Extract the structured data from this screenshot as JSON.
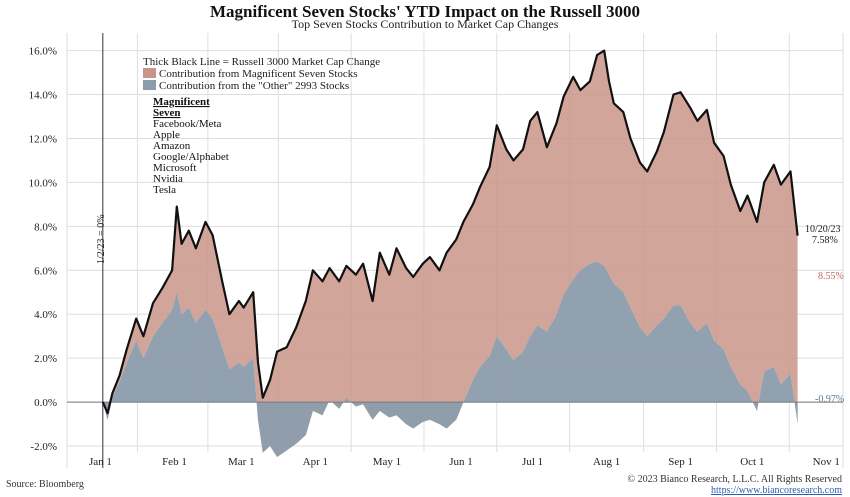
{
  "header": {
    "title": "Magnificent Seven Stocks' YTD Impact on the Russell 3000",
    "subtitle": "Top Seven Stocks Contribution to Market Cap Changes"
  },
  "legend": {
    "line_label": "Thick Black Line = Russell 3000 Market Cap Change",
    "mag7_label": "Contribution from Magnificent Seven Stocks",
    "other_label": "Contribution from the \"Other\" 2993 Stocks",
    "placement": "top-left"
  },
  "mag7_box": {
    "heading_line1": "Magnificent",
    "heading_line2": "Seven",
    "items": [
      "Facebook/Meta",
      "Apple",
      "Amazon",
      "Google/Alphabet",
      "Microsoft",
      "Nvidia",
      "Tesla"
    ]
  },
  "annotations": {
    "start_label": "1/2/23 = 0%",
    "end_date": "10/20/23",
    "end_total": "7.58%",
    "end_mag7": "8.55%",
    "end_other": "-0.97%"
  },
  "footer": {
    "source": "Source: Bloomberg",
    "copyright": "© 2023 Bianco Research, L.L.C. All Rights Reserved",
    "url": "https://www.biancoresearch.com"
  },
  "colors": {
    "mag7_fill": "#c99588",
    "other_fill": "#8c9cab",
    "line": "#111111",
    "annotation_red": "#c06a5a",
    "annotation_blue": "#5b7a99"
  },
  "chart_data": {
    "type": "area",
    "x_tick_labels": [
      "Jan 1",
      "Feb 1",
      "Mar 1",
      "Apr 1",
      "May 1",
      "Jun 1",
      "Jul 1",
      "Aug 1",
      "Sep 1",
      "Oct 1",
      "Nov 1"
    ],
    "y_tick_labels": [
      "16.0%",
      "14.0%",
      "12.0%",
      "10.0%",
      "8.0%",
      "6.0%",
      "4.0%",
      "2.0%",
      "0.0%",
      "-2.0%"
    ],
    "ylim": [
      -3.0,
      16.8
    ],
    "grid": true,
    "series": [
      {
        "name": "Russell 3000 Market Cap Change",
        "style": "line",
        "points": [
          [
            "2023-01-02",
            0.0
          ],
          [
            "2023-01-04",
            -0.5
          ],
          [
            "2023-01-06",
            0.4
          ],
          [
            "2023-01-09",
            1.2
          ],
          [
            "2023-01-12",
            2.4
          ],
          [
            "2023-01-16",
            3.8
          ],
          [
            "2023-01-19",
            3.0
          ],
          [
            "2023-01-23",
            4.5
          ],
          [
            "2023-01-27",
            5.2
          ],
          [
            "2023-01-31",
            6.0
          ],
          [
            "2023-02-02",
            8.9
          ],
          [
            "2023-02-04",
            7.2
          ],
          [
            "2023-02-07",
            7.8
          ],
          [
            "2023-02-10",
            7.0
          ],
          [
            "2023-02-14",
            8.2
          ],
          [
            "2023-02-17",
            7.6
          ],
          [
            "2023-02-21",
            5.5
          ],
          [
            "2023-02-24",
            4.0
          ],
          [
            "2023-02-28",
            4.6
          ],
          [
            "2023-03-02",
            4.3
          ],
          [
            "2023-03-06",
            5.0
          ],
          [
            "2023-03-08",
            1.8
          ],
          [
            "2023-03-10",
            0.2
          ],
          [
            "2023-03-13",
            1.0
          ],
          [
            "2023-03-16",
            2.3
          ],
          [
            "2023-03-20",
            2.5
          ],
          [
            "2023-03-24",
            3.4
          ],
          [
            "2023-03-28",
            4.6
          ],
          [
            "2023-03-31",
            6.0
          ],
          [
            "2023-04-04",
            5.5
          ],
          [
            "2023-04-07",
            6.1
          ],
          [
            "2023-04-11",
            5.5
          ],
          [
            "2023-04-14",
            6.2
          ],
          [
            "2023-04-18",
            5.8
          ],
          [
            "2023-04-21",
            6.3
          ],
          [
            "2023-04-25",
            4.6
          ],
          [
            "2023-04-28",
            6.8
          ],
          [
            "2023-05-02",
            5.8
          ],
          [
            "2023-05-05",
            7.0
          ],
          [
            "2023-05-09",
            6.1
          ],
          [
            "2023-05-12",
            5.7
          ],
          [
            "2023-05-16",
            6.3
          ],
          [
            "2023-05-19",
            6.6
          ],
          [
            "2023-05-23",
            6.0
          ],
          [
            "2023-05-26",
            6.8
          ],
          [
            "2023-05-30",
            7.4
          ],
          [
            "2023-06-02",
            8.2
          ],
          [
            "2023-06-06",
            9.0
          ],
          [
            "2023-06-09",
            9.8
          ],
          [
            "2023-06-13",
            10.7
          ],
          [
            "2023-06-16",
            12.6
          ],
          [
            "2023-06-20",
            11.5
          ],
          [
            "2023-06-23",
            11.0
          ],
          [
            "2023-06-27",
            11.5
          ],
          [
            "2023-06-30",
            12.8
          ],
          [
            "2023-07-03",
            13.2
          ],
          [
            "2023-07-07",
            11.6
          ],
          [
            "2023-07-11",
            12.7
          ],
          [
            "2023-07-14",
            13.9
          ],
          [
            "2023-07-18",
            14.8
          ],
          [
            "2023-07-21",
            14.2
          ],
          [
            "2023-07-25",
            14.6
          ],
          [
            "2023-07-28",
            15.8
          ],
          [
            "2023-07-31",
            16.0
          ],
          [
            "2023-08-02",
            14.6
          ],
          [
            "2023-08-04",
            13.6
          ],
          [
            "2023-08-08",
            13.2
          ],
          [
            "2023-08-11",
            12.0
          ],
          [
            "2023-08-15",
            10.9
          ],
          [
            "2023-08-18",
            10.5
          ],
          [
            "2023-08-22",
            11.4
          ],
          [
            "2023-08-25",
            12.3
          ],
          [
            "2023-08-29",
            14.0
          ],
          [
            "2023-09-01",
            14.1
          ],
          [
            "2023-09-05",
            13.4
          ],
          [
            "2023-09-08",
            12.8
          ],
          [
            "2023-09-12",
            13.3
          ],
          [
            "2023-09-15",
            11.8
          ],
          [
            "2023-09-19",
            11.2
          ],
          [
            "2023-09-22",
            9.9
          ],
          [
            "2023-09-26",
            8.7
          ],
          [
            "2023-09-29",
            9.4
          ],
          [
            "2023-10-03",
            8.2
          ],
          [
            "2023-10-06",
            10.0
          ],
          [
            "2023-10-10",
            10.8
          ],
          [
            "2023-10-13",
            9.9
          ],
          [
            "2023-10-17",
            10.5
          ],
          [
            "2023-10-20",
            7.58
          ]
        ]
      },
      {
        "name": "Contribution from the \"Other\" 2993 Stocks",
        "style": "area",
        "points": [
          [
            "2023-01-02",
            0.0
          ],
          [
            "2023-01-04",
            -0.8
          ],
          [
            "2023-01-06",
            0.2
          ],
          [
            "2023-01-09",
            0.9
          ],
          [
            "2023-01-12",
            1.8
          ],
          [
            "2023-01-16",
            2.8
          ],
          [
            "2023-01-19",
            2.0
          ],
          [
            "2023-01-23",
            3.0
          ],
          [
            "2023-01-27",
            3.6
          ],
          [
            "2023-01-31",
            4.2
          ],
          [
            "2023-02-02",
            5.0
          ],
          [
            "2023-02-04",
            4.0
          ],
          [
            "2023-02-07",
            4.3
          ],
          [
            "2023-02-10",
            3.6
          ],
          [
            "2023-02-14",
            4.2
          ],
          [
            "2023-02-17",
            3.8
          ],
          [
            "2023-02-21",
            2.5
          ],
          [
            "2023-02-24",
            1.5
          ],
          [
            "2023-02-28",
            1.8
          ],
          [
            "2023-03-02",
            1.6
          ],
          [
            "2023-03-06",
            2.0
          ],
          [
            "2023-03-08",
            -0.8
          ],
          [
            "2023-03-10",
            -2.3
          ],
          [
            "2023-03-13",
            -2.0
          ],
          [
            "2023-03-16",
            -2.5
          ],
          [
            "2023-03-20",
            -2.2
          ],
          [
            "2023-03-24",
            -1.9
          ],
          [
            "2023-03-28",
            -1.5
          ],
          [
            "2023-03-31",
            -0.4
          ],
          [
            "2023-04-04",
            -0.6
          ],
          [
            "2023-04-07",
            0.1
          ],
          [
            "2023-04-11",
            -0.3
          ],
          [
            "2023-04-14",
            0.2
          ],
          [
            "2023-04-18",
            -0.2
          ],
          [
            "2023-04-21",
            -0.1
          ],
          [
            "2023-04-25",
            -0.8
          ],
          [
            "2023-04-28",
            -0.4
          ],
          [
            "2023-05-02",
            -0.7
          ],
          [
            "2023-05-05",
            -0.6
          ],
          [
            "2023-05-09",
            -1.0
          ],
          [
            "2023-05-12",
            -1.2
          ],
          [
            "2023-05-16",
            -0.9
          ],
          [
            "2023-05-19",
            -0.8
          ],
          [
            "2023-05-23",
            -1.0
          ],
          [
            "2023-05-26",
            -1.2
          ],
          [
            "2023-05-30",
            -0.8
          ],
          [
            "2023-06-02",
            0.0
          ],
          [
            "2023-06-06",
            1.0
          ],
          [
            "2023-06-09",
            1.6
          ],
          [
            "2023-06-13",
            2.1
          ],
          [
            "2023-06-16",
            3.0
          ],
          [
            "2023-06-20",
            2.4
          ],
          [
            "2023-06-23",
            1.9
          ],
          [
            "2023-06-27",
            2.3
          ],
          [
            "2023-06-30",
            3.0
          ],
          [
            "2023-07-03",
            3.5
          ],
          [
            "2023-07-07",
            3.2
          ],
          [
            "2023-07-11",
            4.0
          ],
          [
            "2023-07-14",
            4.9
          ],
          [
            "2023-07-18",
            5.6
          ],
          [
            "2023-07-21",
            6.0
          ],
          [
            "2023-07-25",
            6.3
          ],
          [
            "2023-07-28",
            6.4
          ],
          [
            "2023-07-31",
            6.2
          ],
          [
            "2023-08-02",
            5.8
          ],
          [
            "2023-08-04",
            5.4
          ],
          [
            "2023-08-08",
            5.0
          ],
          [
            "2023-08-11",
            4.3
          ],
          [
            "2023-08-15",
            3.4
          ],
          [
            "2023-08-18",
            3.0
          ],
          [
            "2023-08-22",
            3.5
          ],
          [
            "2023-08-25",
            3.8
          ],
          [
            "2023-08-29",
            4.4
          ],
          [
            "2023-09-01",
            4.4
          ],
          [
            "2023-09-05",
            3.6
          ],
          [
            "2023-09-08",
            3.2
          ],
          [
            "2023-09-12",
            3.6
          ],
          [
            "2023-09-15",
            2.8
          ],
          [
            "2023-09-19",
            2.4
          ],
          [
            "2023-09-22",
            1.6
          ],
          [
            "2023-09-26",
            0.8
          ],
          [
            "2023-09-29",
            0.5
          ],
          [
            "2023-10-03",
            -0.4
          ],
          [
            "2023-10-06",
            1.4
          ],
          [
            "2023-10-10",
            1.6
          ],
          [
            "2023-10-13",
            0.8
          ],
          [
            "2023-10-17",
            1.3
          ],
          [
            "2023-10-20",
            -0.97
          ]
        ]
      }
    ]
  }
}
